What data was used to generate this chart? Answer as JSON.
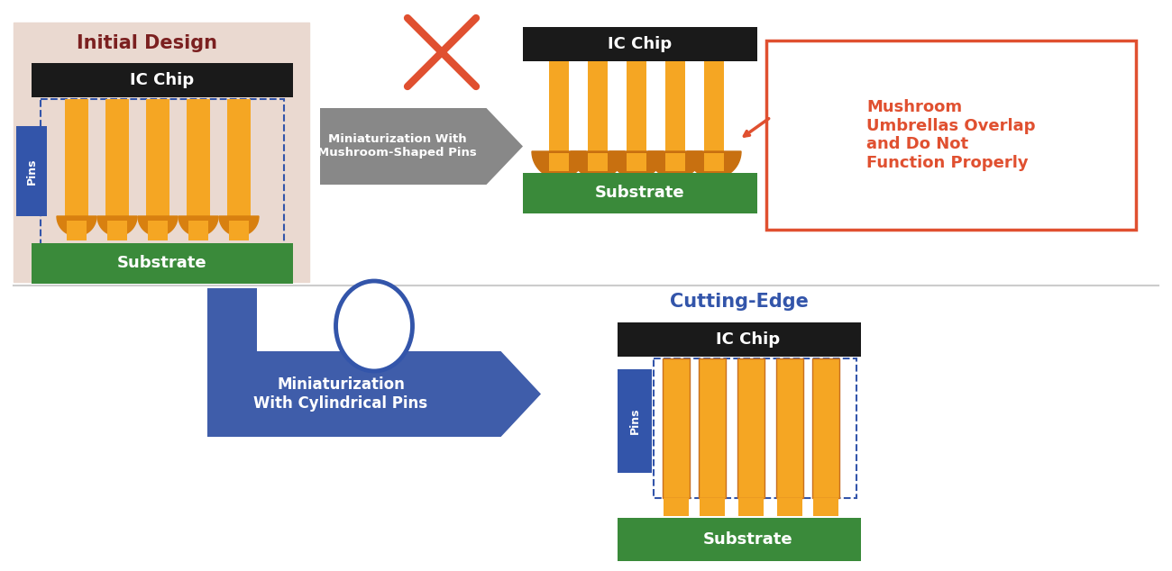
{
  "bg_color": "#ffffff",
  "initial_design_label": "Initial Design",
  "cutting_edge_label": "Cutting-Edge",
  "ic_chip_label": "IC Chip",
  "substrate_label": "Substrate",
  "pins_label": "Pins",
  "arrow_label_top": "Miniaturization With\nMushroom-Shaped Pins",
  "arrow_label_bottom": "Miniaturization\nWith Cylindrical Pins",
  "callout_text": "Mushroom\nUmbrellas Overlap\nand Do Not\nFunction Properly",
  "orange": "#F5A623",
  "orange_dark": "#C87020",
  "green": "#3A8A3A",
  "dark_chip": "#1a1a1a",
  "blue_pins": "#3355AA",
  "blue_arrow": "#3F5DAA",
  "gray_arrow": "#888888",
  "red_cross": "#E05030",
  "callout_orange": "#E05030",
  "initial_bg": "#EAD9D0",
  "separator_color": "#CCCCCC",
  "maroon": "#7B2020"
}
